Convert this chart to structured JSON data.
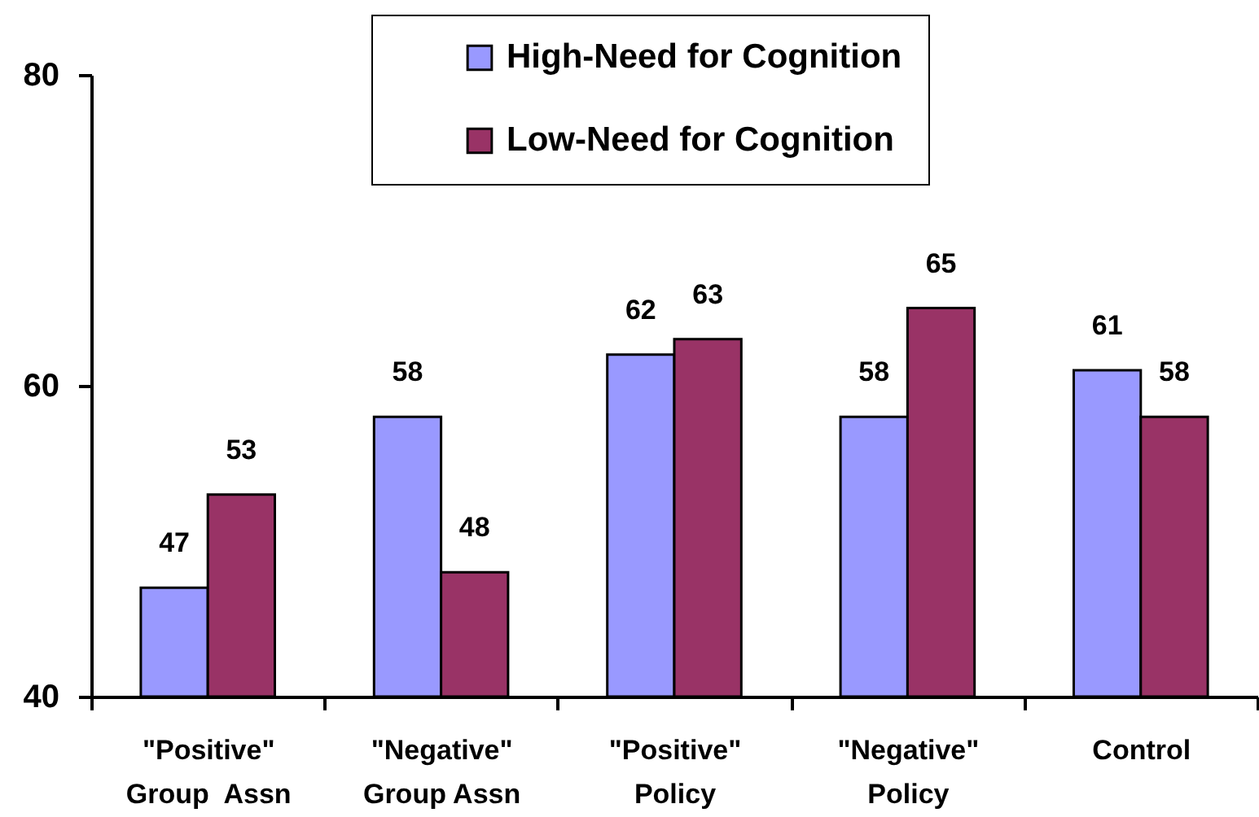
{
  "chart_data": {
    "type": "bar",
    "categories": [
      "\"Positive\"\nGroup  Assn",
      "\"Negative\"\nGroup Assn",
      "\"Positive\"\nPolicy",
      "\"Negative\"\nPolicy",
      "Control"
    ],
    "series": [
      {
        "name": "High-Need for Cognition",
        "color": "#9999ff",
        "values": [
          47,
          58,
          62,
          58,
          61
        ]
      },
      {
        "name": "Low-Need for Cognition",
        "color": "#993366",
        "values": [
          53,
          48,
          63,
          65,
          58
        ]
      }
    ],
    "ylim": [
      40,
      80
    ],
    "yticks": [
      40,
      60,
      80
    ],
    "legend": "top",
    "data_labels": true
  }
}
